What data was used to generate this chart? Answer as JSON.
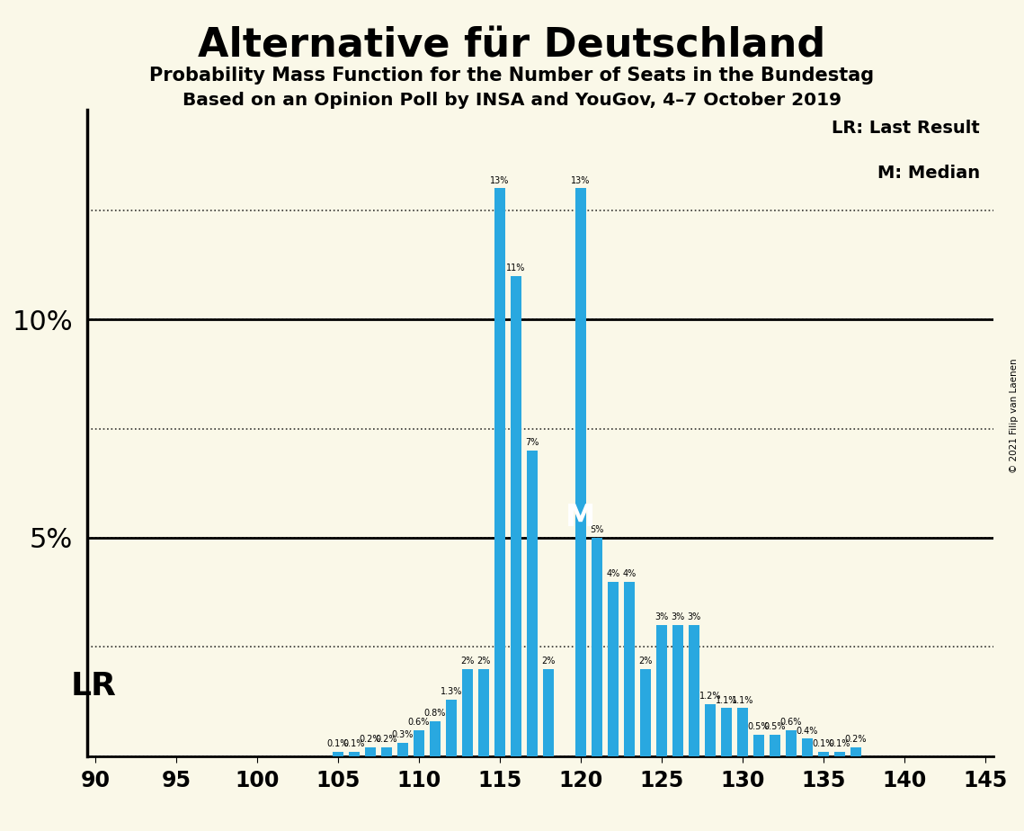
{
  "title": "Alternative für Deutschland",
  "subtitle1": "Probability Mass Function for the Number of Seats in the Bundestag",
  "subtitle2": "Based on an Opinion Poll by INSA and YouGov, 4–7 October 2019",
  "copyright": "© 2021 Filip van Laenen",
  "legend_lr": "LR: Last Result",
  "legend_m": "M: Median",
  "lr_label": "LR",
  "m_label": "M",
  "background_color": "#faf8e8",
  "bar_color": "#29a8e0",
  "xmin": 89.5,
  "xmax": 145.5,
  "ymin": 0.0,
  "ymax": 0.148,
  "lr_seat": 90,
  "median_seat": 120,
  "seats": [
    90,
    91,
    92,
    93,
    94,
    95,
    96,
    97,
    98,
    99,
    100,
    101,
    102,
    103,
    104,
    105,
    106,
    107,
    108,
    109,
    110,
    111,
    112,
    113,
    114,
    115,
    116,
    117,
    118,
    119,
    120,
    121,
    122,
    123,
    124,
    125,
    126,
    127,
    128,
    129,
    130,
    131,
    132,
    133,
    134,
    135,
    136,
    137,
    138,
    139,
    140,
    141,
    142,
    143,
    144,
    145
  ],
  "prob_labels": [
    "0%",
    "0%",
    "0%",
    "0%",
    "0%",
    "0%",
    "0%",
    "0%",
    "0%",
    "0%",
    "0%",
    "0%",
    "0%",
    "0%",
    "0%",
    "0.1%",
    "0.1%",
    "0.2%",
    "0.2%",
    "0.3%",
    "0.6%",
    "0.8%",
    "1.3%",
    "2%",
    "2%",
    "13%",
    "11%",
    "7%",
    "2%",
    "0%",
    "13%",
    "5%",
    "4%",
    "4%",
    "2%",
    "3%",
    "3%",
    "3%",
    "1.2%",
    "1.1%",
    "1.1%",
    "0.5%",
    "0.5%",
    "0.6%",
    "0.4%",
    "0.1%",
    "0.1%",
    "0.2%",
    "0%",
    "0%",
    "0%",
    "0%",
    "0%",
    "0%",
    "0%",
    "0%"
  ],
  "prob_values": [
    0.0,
    0.0,
    0.0,
    0.0,
    0.0,
    0.0,
    0.0,
    0.0,
    0.0,
    0.0,
    0.0,
    0.0,
    0.0,
    0.0,
    0.0,
    0.001,
    0.001,
    0.002,
    0.002,
    0.003,
    0.006,
    0.008,
    0.013,
    0.02,
    0.02,
    0.13,
    0.11,
    0.07,
    0.02,
    0.0,
    0.13,
    0.05,
    0.04,
    0.04,
    0.02,
    0.03,
    0.03,
    0.03,
    0.012,
    0.011,
    0.011,
    0.005,
    0.005,
    0.006,
    0.004,
    0.001,
    0.001,
    0.002,
    0.0,
    0.0,
    0.0,
    0.0,
    0.0,
    0.0,
    0.0,
    0.0
  ],
  "ytick_positions": [
    0.0,
    0.025,
    0.05,
    0.075,
    0.1,
    0.125
  ],
  "solid_lines": [
    0.05,
    0.1
  ],
  "xticks": [
    90,
    95,
    100,
    105,
    110,
    115,
    120,
    125,
    130,
    135,
    140,
    145
  ]
}
